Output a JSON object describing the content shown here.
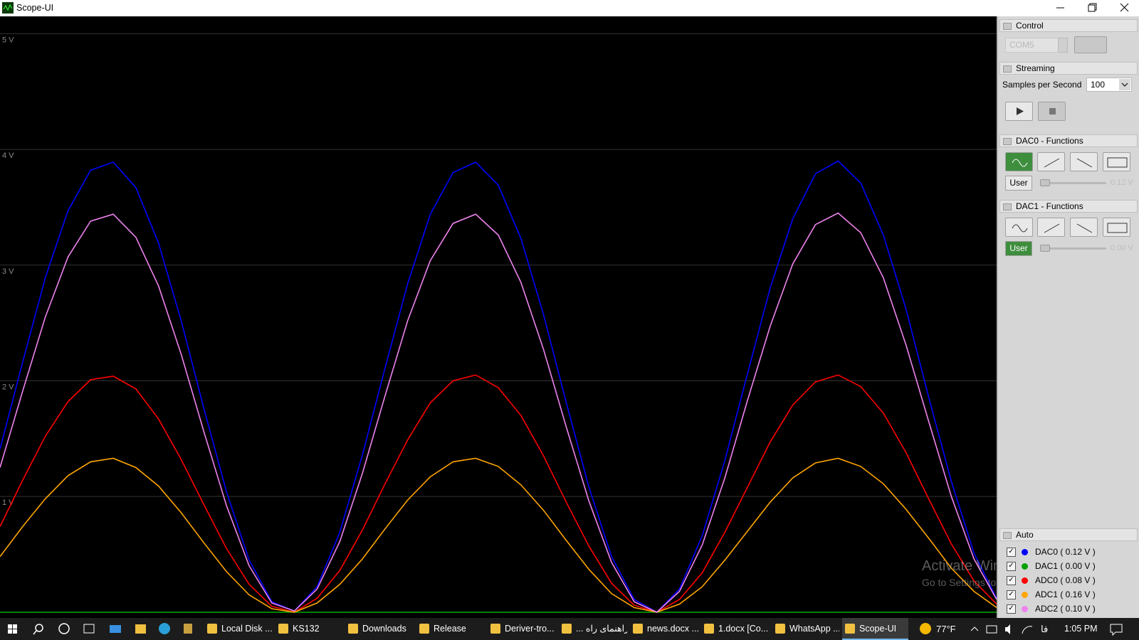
{
  "window": {
    "title": "Scope-UI"
  },
  "panel": {
    "control": {
      "title": "Control",
      "port": "COM5"
    },
    "streaming": {
      "title": "Streaming",
      "label": "Samples per Second",
      "rate": 100
    },
    "dac0": {
      "title": "DAC0 - Functions",
      "user": "User",
      "level": "0.12 V"
    },
    "dac1": {
      "title": "DAC1 - Functions",
      "user": "User",
      "level": "0.00 V"
    },
    "auto": {
      "title": "Auto"
    }
  },
  "watermark": {
    "title": "Activate Windows",
    "text": "Go to Settings to activate Windows."
  },
  "taskbar": {
    "items": [
      "Local Disk ...",
      "KS132",
      "Downloads",
      "Release",
      "Deriver-tro...",
      "... راهنمای راه",
      "news.docx ...",
      "1.docx [Co...",
      "WhatsApp ...",
      "Scope-UI"
    ],
    "weather": "77°F",
    "language": "فا",
    "time": "1:05 PM"
  },
  "chart_data": {
    "type": "line",
    "categories": [
      null,
      null,
      null,
      null,
      null,
      null,
      null,
      null,
      null,
      null,
      null,
      null,
      null,
      null,
      null,
      null,
      null,
      null,
      null,
      null,
      null,
      null,
      null,
      null,
      null,
      null,
      null,
      null,
      null,
      null,
      null,
      null,
      null,
      null,
      null,
      null,
      null,
      null,
      null,
      null,
      null,
      null,
      null,
      null,
      null
    ],
    "ylim": [
      -0.05,
      5.15
    ],
    "yticks": [
      {
        "value": 1,
        "label": "1 V"
      },
      {
        "value": 2,
        "label": "2 V"
      },
      {
        "value": 3,
        "label": "3 V"
      },
      {
        "value": 4,
        "label": "4 V"
      },
      {
        "value": 5,
        "label": "5 V"
      }
    ],
    "grid": true,
    "series": [
      {
        "name": "DAC0 ( 0.12 V )",
        "color": "#0000ff",
        "values": [
          1.41,
          2.16,
          2.89,
          3.47,
          3.82,
          3.89,
          3.67,
          3.19,
          2.52,
          1.76,
          1.04,
          0.45,
          0.09,
          0.01,
          0.22,
          0.69,
          1.36,
          2.11,
          2.84,
          3.44,
          3.8,
          3.89,
          3.69,
          3.23,
          2.57,
          1.81,
          1.08,
          0.48,
          0.11,
          0.0,
          0.2,
          0.66,
          1.31,
          2.06,
          2.8,
          3.4,
          3.79,
          3.9,
          3.71,
          3.26,
          2.62,
          1.86,
          1.13,
          0.51,
          0.12
        ]
      },
      {
        "name": "DAC1 ( 0.00 V )",
        "color": "#00a000",
        "values": [
          0,
          0,
          0,
          0,
          0,
          0,
          0,
          0,
          0,
          0,
          0,
          0,
          0,
          0,
          0,
          0,
          0,
          0,
          0,
          0,
          0,
          0,
          0,
          0,
          0,
          0,
          0,
          0,
          0,
          0,
          0,
          0,
          0,
          0,
          0,
          0,
          0,
          0,
          0,
          0,
          0,
          0,
          0,
          0,
          0
        ]
      },
      {
        "name": "ADC0 ( 0.08 V )",
        "color": "#ff0000",
        "values": [
          0.74,
          1.14,
          1.52,
          1.82,
          2.01,
          2.04,
          1.93,
          1.67,
          1.32,
          0.93,
          0.55,
          0.24,
          0.05,
          0.0,
          0.12,
          0.36,
          0.71,
          1.11,
          1.49,
          1.81,
          2.0,
          2.05,
          1.94,
          1.7,
          1.35,
          0.95,
          0.57,
          0.25,
          0.06,
          0.0,
          0.11,
          0.34,
          0.69,
          1.08,
          1.47,
          1.79,
          1.99,
          2.05,
          1.95,
          1.72,
          1.38,
          0.98,
          0.59,
          0.27,
          0.07
        ]
      },
      {
        "name": "ADC1 ( 0.16 V )",
        "color": "#ffa500",
        "values": [
          0.48,
          0.74,
          0.98,
          1.18,
          1.3,
          1.33,
          1.25,
          1.09,
          0.86,
          0.6,
          0.35,
          0.15,
          0.03,
          0.0,
          0.08,
          0.24,
          0.46,
          0.72,
          0.97,
          1.17,
          1.3,
          1.33,
          1.26,
          1.1,
          0.88,
          0.62,
          0.37,
          0.16,
          0.04,
          0.0,
          0.07,
          0.22,
          0.45,
          0.7,
          0.95,
          1.16,
          1.29,
          1.33,
          1.26,
          1.11,
          0.89,
          0.64,
          0.38,
          0.18,
          0.04
        ]
      },
      {
        "name": "ADC2 ( 0.10 V )",
        "color": "#ee82ee",
        "values": [
          1.25,
          1.91,
          2.55,
          3.07,
          3.38,
          3.44,
          3.24,
          2.82,
          2.23,
          1.56,
          0.92,
          0.4,
          0.08,
          0.01,
          0.2,
          0.61,
          1.2,
          1.87,
          2.52,
          3.04,
          3.36,
          3.44,
          3.26,
          2.85,
          2.27,
          1.6,
          0.96,
          0.43,
          0.09,
          0.0,
          0.18,
          0.58,
          1.16,
          1.83,
          2.47,
          3.01,
          3.35,
          3.45,
          3.28,
          2.89,
          2.31,
          1.65,
          1.0,
          0.46,
          0.11
        ]
      }
    ]
  }
}
